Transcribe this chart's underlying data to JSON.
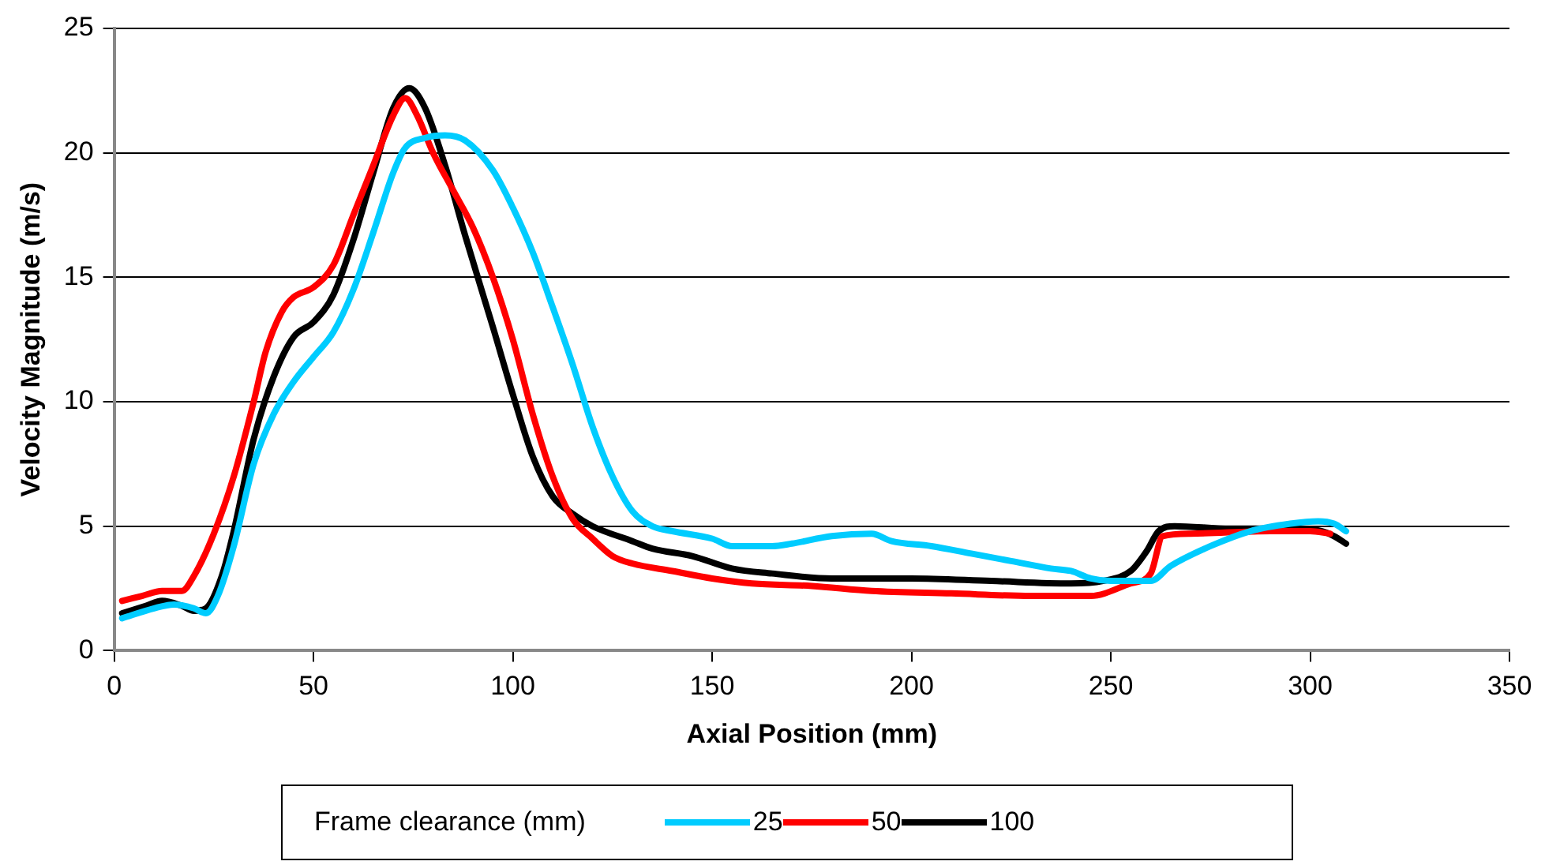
{
  "chart_data": {
    "type": "line",
    "xlabel": "Axial Position (mm)",
    "ylabel": "Velocity Magnitude (m/s)",
    "legend_title": "Frame clearance (mm)",
    "xlim": [
      0,
      350
    ],
    "xticks": [
      0,
      50,
      100,
      150,
      200,
      250,
      300,
      350
    ],
    "ylim": [
      0,
      25
    ],
    "yticks": [
      0,
      5,
      10,
      15,
      20,
      25
    ],
    "grid": "y",
    "legend": "bottom",
    "marker": "none",
    "line_style": "solid",
    "series": [
      {
        "name": "25",
        "color": "#00ccff",
        "x": [
          2,
          10,
          15,
          20,
          23,
          26,
          30,
          35,
          40,
          45,
          50,
          55,
          60,
          65,
          70,
          73,
          78,
          83,
          88,
          95,
          100,
          105,
          110,
          115,
          120,
          125,
          130,
          135,
          140,
          150,
          155,
          165,
          170,
          180,
          190,
          195,
          205,
          215,
          225,
          235,
          240,
          245,
          250,
          255,
          260,
          265,
          275,
          285,
          295,
          302,
          306,
          309
        ],
        "values": [
          1.3,
          1.7,
          1.85,
          1.7,
          1.5,
          2.2,
          4.2,
          7.5,
          9.5,
          10.8,
          11.8,
          12.8,
          14.5,
          16.8,
          19.2,
          20.2,
          20.6,
          20.7,
          20.5,
          19.3,
          17.8,
          16,
          13.8,
          11.5,
          9,
          7,
          5.6,
          5,
          4.8,
          4.5,
          4.2,
          4.2,
          4.3,
          4.6,
          4.7,
          4.4,
          4.2,
          3.9,
          3.6,
          3.3,
          3.2,
          2.9,
          2.8,
          2.8,
          2.8,
          3.4,
          4.2,
          4.8,
          5.1,
          5.2,
          5.1,
          4.8
        ]
      },
      {
        "name": "50",
        "color": "#ff0000",
        "x": [
          2,
          7,
          12,
          17,
          20,
          25,
          30,
          35,
          38,
          42,
          45,
          50,
          55,
          60,
          65,
          70,
          73,
          76,
          80,
          85,
          90,
          95,
          100,
          105,
          110,
          115,
          120,
          125,
          130,
          140,
          150,
          160,
          175,
          190,
          210,
          230,
          245,
          255,
          260,
          263,
          270,
          290,
          300,
          305
        ],
        "values": [
          2.0,
          2.2,
          2.4,
          2.4,
          3,
          4.7,
          7,
          10,
          12,
          13.6,
          14.2,
          14.6,
          15.5,
          17.5,
          19.5,
          21.5,
          22.2,
          21.5,
          20,
          18.5,
          17,
          15,
          12.5,
          9.5,
          7,
          5.3,
          4.5,
          3.8,
          3.5,
          3.2,
          2.9,
          2.7,
          2.6,
          2.4,
          2.3,
          2.2,
          2.2,
          2.7,
          3.1,
          4.6,
          4.7,
          4.8,
          4.8,
          4.7
        ]
      },
      {
        "name": "100",
        "color": "#000000",
        "x": [
          2,
          8,
          12,
          17,
          20,
          23,
          27,
          30,
          35,
          40,
          45,
          50,
          55,
          60,
          65,
          70,
          74,
          78,
          83,
          88,
          95,
          100,
          105,
          110,
          115,
          120,
          130,
          135,
          145,
          155,
          165,
          180,
          200,
          220,
          240,
          248,
          255,
          259,
          262,
          266,
          280,
          295,
          303,
          306,
          309
        ],
        "values": [
          1.5,
          1.8,
          2.0,
          1.8,
          1.6,
          1.7,
          3,
          4.8,
          8.5,
          11,
          12.6,
          13.2,
          14.3,
          16.5,
          19.2,
          21.8,
          22.6,
          21.8,
          19.5,
          16.7,
          13,
          10.3,
          7.8,
          6.2,
          5.5,
          5,
          4.4,
          4.1,
          3.8,
          3.3,
          3.1,
          2.9,
          2.9,
          2.8,
          2.7,
          2.8,
          3.2,
          4.0,
          4.8,
          5.0,
          4.9,
          4.9,
          4.8,
          4.6,
          4.3
        ]
      }
    ]
  }
}
